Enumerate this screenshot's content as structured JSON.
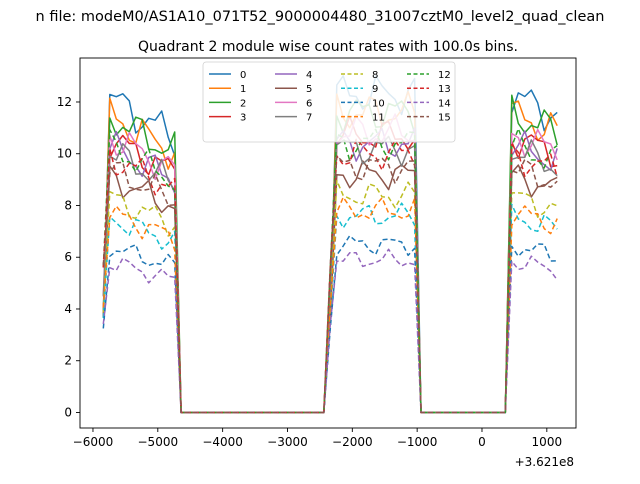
{
  "chart_data": {
    "type": "line",
    "suptitle": "n file: modeM0/AS1A10_071T52_9000004480_31007cztM0_level2_quad_clean",
    "title": "Quadrant 2 module wise count rates with 100.0s bins.",
    "xlabel": "",
    "ylabel": "",
    "x_offset_label": "+3.621e8",
    "xlim": [
      -6200,
      1450
    ],
    "ylim": [
      -0.6,
      13.7
    ],
    "xticks": [
      -6000,
      -5000,
      -4000,
      -3000,
      -2000,
      -1000,
      0,
      1000
    ],
    "xtick_labels": [
      "−6000",
      "−5000",
      "−4000",
      "−3000",
      "−2000",
      "−1000",
      "0",
      "1000"
    ],
    "yticks": [
      0,
      2,
      4,
      6,
      8,
      10,
      12
    ],
    "ytick_labels": [
      "0",
      "2",
      "4",
      "6",
      "8",
      "10",
      "12"
    ],
    "grid": false,
    "legend": {
      "placement": "top-center",
      "columns": 4
    },
    "series": [
      {
        "name": "0",
        "color": "#1f77b4",
        "style": "solid",
        "level": 12.3
      },
      {
        "name": "1",
        "color": "#ff7f0e",
        "style": "solid",
        "level": 11.6
      },
      {
        "name": "2",
        "color": "#2ca02c",
        "style": "solid",
        "level": 11.6
      },
      {
        "name": "3",
        "color": "#d62728",
        "style": "solid",
        "level": 10.7
      },
      {
        "name": "4",
        "color": "#9467bd",
        "style": "solid",
        "level": 10.4
      },
      {
        "name": "5",
        "color": "#8c564b",
        "style": "solid",
        "level": 9.2
      },
      {
        "name": "6",
        "color": "#e377c2",
        "style": "solid",
        "level": 10.8
      },
      {
        "name": "7",
        "color": "#7f7f7f",
        "style": "solid",
        "level": 10.2
      },
      {
        "name": "8",
        "color": "#bcbd22",
        "style": "dashed",
        "level": 8.4
      },
      {
        "name": "9",
        "color": "#17becf",
        "style": "dashed",
        "level": 7.6
      },
      {
        "name": "10",
        "color": "#1f77b4",
        "style": "dashed",
        "level": 6.5
      },
      {
        "name": "11",
        "color": "#ff7f0e",
        "style": "dashed",
        "level": 7.8
      },
      {
        "name": "12",
        "color": "#2ca02c",
        "style": "dashed",
        "level": 10.4
      },
      {
        "name": "13",
        "color": "#d62728",
        "style": "dashed",
        "level": 10.0
      },
      {
        "name": "14",
        "color": "#9467bd",
        "style": "dashed",
        "level": 5.9
      },
      {
        "name": "15",
        "color": "#8c564b",
        "style": "dashed",
        "level": 9.5
      }
    ],
    "segments": [
      {
        "start": -5840,
        "end": -4700,
        "decay_to": 0.86
      },
      {
        "start": -2340,
        "end": -1000,
        "decay_to": 1.0
      },
      {
        "start": 400,
        "end": 1200,
        "decay_to": 0.93
      }
    ],
    "x_range": [
      -5840,
      1240
    ],
    "bin": 100
  }
}
